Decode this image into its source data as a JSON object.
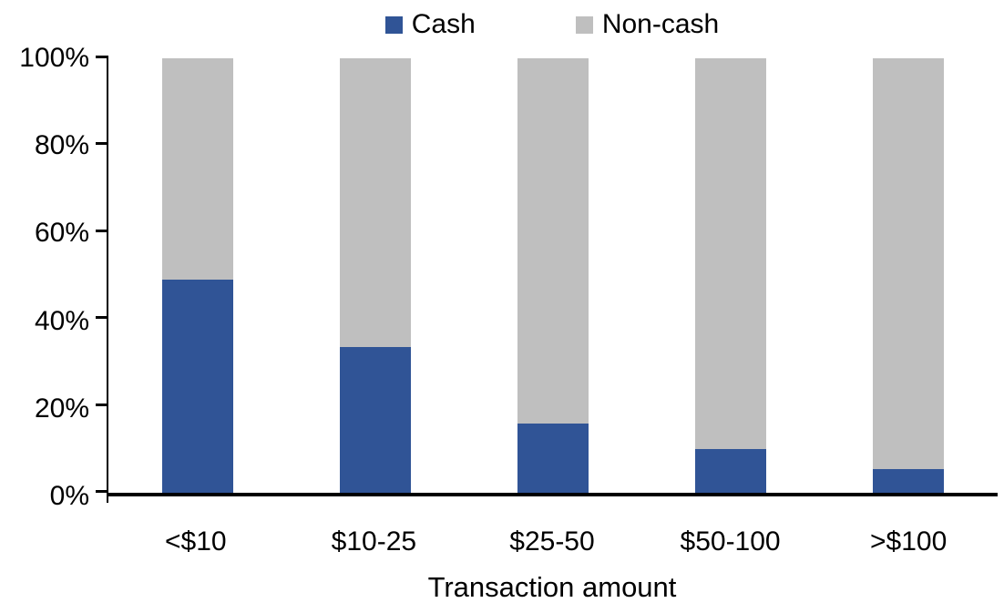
{
  "colors": {
    "cash": "#305496",
    "noncash": "#BFBFBF",
    "axis": "#000000",
    "text": "#000000",
    "background": "#FFFFFF"
  },
  "legend": {
    "position": "top",
    "items": [
      {
        "label": "Cash",
        "color": "#305496"
      },
      {
        "label": "Non-cash",
        "color": "#BFBFBF"
      }
    ]
  },
  "chart_data": {
    "type": "bar",
    "stacked": true,
    "title": "",
    "xlabel": "Transaction amount",
    "ylabel": "",
    "categories": [
      "<$10",
      "$10-25",
      "$25-50",
      "$50-100",
      ">$100"
    ],
    "series": [
      {
        "name": "Cash",
        "color": "#305496",
        "values": [
          49,
          33.5,
          16,
          10,
          5.5
        ]
      },
      {
        "name": "Non-cash",
        "color": "#BFBFBF",
        "values": [
          51,
          66.5,
          84,
          90,
          94.5
        ]
      }
    ],
    "ylim": [
      0,
      100
    ],
    "yticks": [
      "0%",
      "20%",
      "40%",
      "60%",
      "80%",
      "100%"
    ],
    "grid": false,
    "legend_position": "top"
  }
}
